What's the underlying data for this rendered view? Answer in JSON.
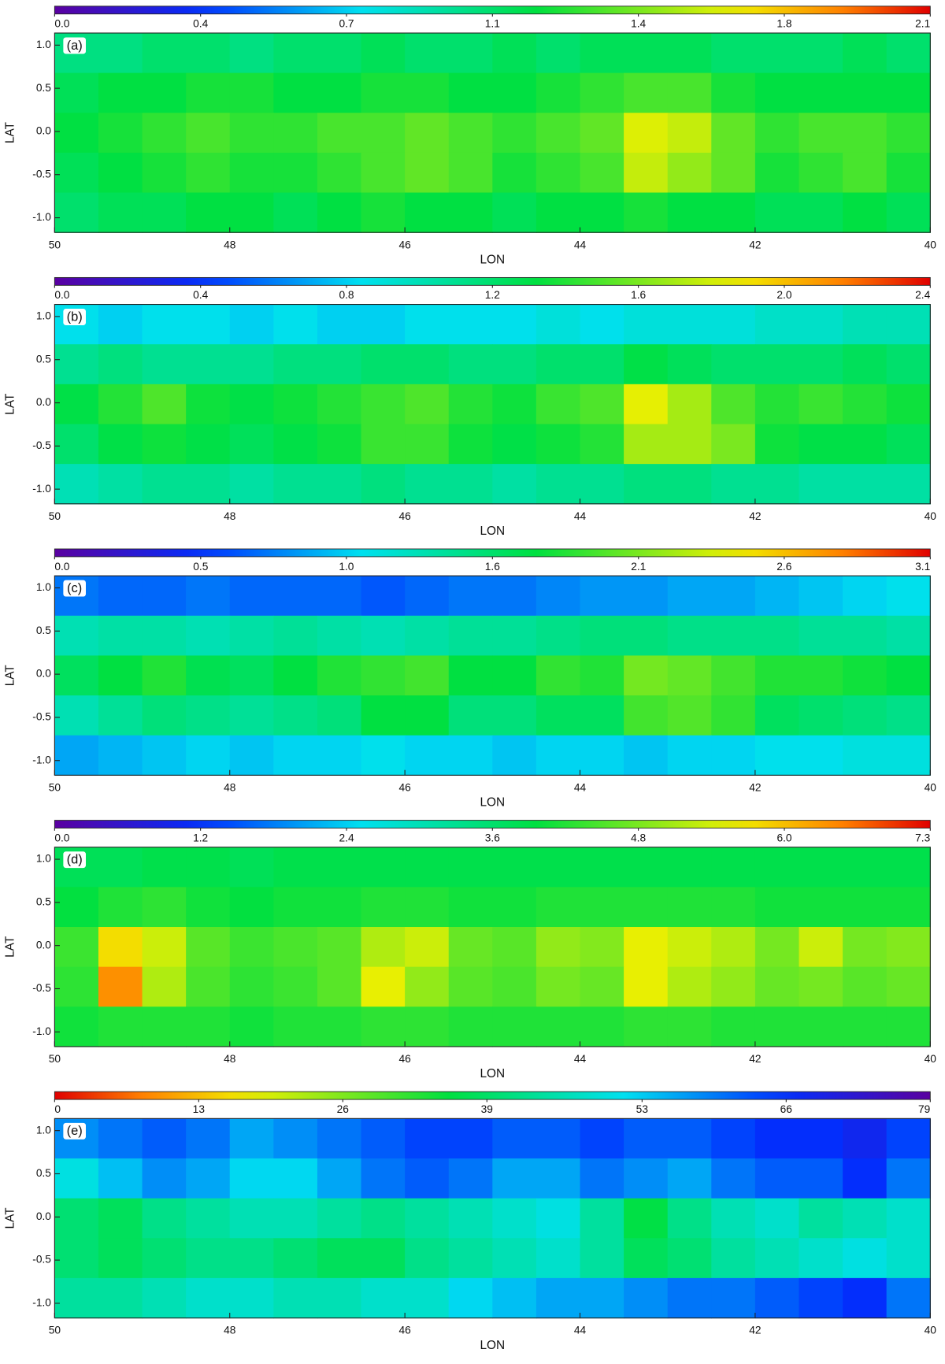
{
  "chart_data": [
    {
      "type": "heatmap",
      "label": "(a)",
      "xlabel": "LON",
      "ylabel": "LAT",
      "colormap": "rainbow",
      "clim": [
        0,
        2.1
      ],
      "cticks": [
        {
          "value": 0,
          "label": "0.0"
        },
        {
          "value": 0.35,
          "label": "0.4"
        },
        0.7,
        {
          "value": 1.05,
          "label": "1.1"
        },
        1.4,
        {
          "value": 1.75,
          "label": "1.8"
        },
        2.1
      ],
      "xlim": [
        50,
        40
      ],
      "xticks": [
        50,
        48,
        46,
        44,
        42,
        40
      ],
      "ylim": [
        -1.17,
        1.14
      ],
      "yticks": [
        {
          "value": 1,
          "label": "1.0"
        },
        0.5,
        {
          "value": 0,
          "label": "0.0"
        },
        -0.5,
        {
          "value": -1,
          "label": "-1.0"
        }
      ],
      "z": [
        [
          1.0,
          1.0,
          1.05,
          1.05,
          1.0,
          1.05,
          1.05,
          1.1,
          1.05,
          1.05,
          1.1,
          1.05,
          1.1,
          1.1,
          1.1,
          1.05,
          1.05,
          1.05,
          1.1,
          1.05
        ],
        [
          1.1,
          1.15,
          1.15,
          1.2,
          1.2,
          1.15,
          1.15,
          1.2,
          1.2,
          1.15,
          1.15,
          1.2,
          1.25,
          1.3,
          1.3,
          1.2,
          1.15,
          1.15,
          1.15,
          1.15
        ],
        [
          1.15,
          1.2,
          1.25,
          1.3,
          1.25,
          1.25,
          1.3,
          1.3,
          1.35,
          1.3,
          1.25,
          1.3,
          1.35,
          1.6,
          1.55,
          1.35,
          1.25,
          1.3,
          1.3,
          1.25
        ],
        [
          1.1,
          1.15,
          1.2,
          1.25,
          1.2,
          1.2,
          1.25,
          1.3,
          1.35,
          1.3,
          1.2,
          1.25,
          1.3,
          1.55,
          1.45,
          1.35,
          1.2,
          1.25,
          1.3,
          1.2
        ],
        [
          1.05,
          1.1,
          1.1,
          1.15,
          1.15,
          1.1,
          1.15,
          1.2,
          1.15,
          1.15,
          1.1,
          1.15,
          1.15,
          1.2,
          1.15,
          1.15,
          1.1,
          1.1,
          1.15,
          1.1
        ]
      ]
    },
    {
      "type": "heatmap",
      "label": "(b)",
      "xlabel": "LON",
      "ylabel": "LAT",
      "colormap": "rainbow",
      "clim": [
        0,
        2.4
      ],
      "cticks": [
        {
          "value": 0,
          "label": "0.0"
        },
        0.4,
        0.8,
        1.2,
        1.6,
        {
          "value": 2,
          "label": "2.0"
        },
        2.4
      ],
      "xlim": [
        50,
        40
      ],
      "xticks": [
        50,
        48,
        46,
        44,
        42,
        40
      ],
      "ylim": [
        -1.17,
        1.14
      ],
      "yticks": [
        {
          "value": 1,
          "label": "1.0"
        },
        0.5,
        {
          "value": 0,
          "label": "0.0"
        },
        -0.5,
        {
          "value": -1,
          "label": "-1.0"
        }
      ],
      "z": [
        [
          0.85,
          0.8,
          0.85,
          0.85,
          0.8,
          0.85,
          0.8,
          0.8,
          0.85,
          0.85,
          0.85,
          0.9,
          0.85,
          0.9,
          0.9,
          0.9,
          0.95,
          0.95,
          1.0,
          1.0
        ],
        [
          1.1,
          1.15,
          1.1,
          1.1,
          1.1,
          1.15,
          1.15,
          1.2,
          1.2,
          1.15,
          1.15,
          1.2,
          1.2,
          1.3,
          1.25,
          1.2,
          1.2,
          1.2,
          1.25,
          1.2
        ],
        [
          1.3,
          1.4,
          1.5,
          1.35,
          1.3,
          1.35,
          1.4,
          1.45,
          1.5,
          1.4,
          1.35,
          1.45,
          1.5,
          1.85,
          1.7,
          1.5,
          1.4,
          1.45,
          1.4,
          1.35
        ],
        [
          1.2,
          1.3,
          1.35,
          1.3,
          1.25,
          1.3,
          1.35,
          1.45,
          1.45,
          1.35,
          1.3,
          1.35,
          1.4,
          1.7,
          1.7,
          1.6,
          1.35,
          1.3,
          1.3,
          1.25
        ],
        [
          1.0,
          1.05,
          1.1,
          1.1,
          1.05,
          1.1,
          1.1,
          1.15,
          1.1,
          1.1,
          1.05,
          1.1,
          1.1,
          1.15,
          1.15,
          1.1,
          1.1,
          1.05,
          1.05,
          1.05
        ]
      ]
    },
    {
      "type": "heatmap",
      "label": "(c)",
      "xlabel": "LON",
      "ylabel": "LAT",
      "colormap": "rainbow",
      "clim": [
        0,
        3.1
      ],
      "cticks": [
        {
          "value": 0,
          "label": "0.0"
        },
        {
          "value": 0.517,
          "label": "0.5"
        },
        {
          "value": 1.033,
          "label": "1.0"
        },
        {
          "value": 1.55,
          "label": "1.6"
        },
        {
          "value": 2.067,
          "label": "2.1"
        },
        {
          "value": 2.583,
          "label": "2.6"
        },
        3.1
      ],
      "xlim": [
        50,
        40
      ],
      "xticks": [
        50,
        48,
        46,
        44,
        42,
        40
      ],
      "ylim": [
        -1.17,
        1.14
      ],
      "yticks": [
        {
          "value": 1,
          "label": "1.0"
        },
        0.5,
        {
          "value": 0,
          "label": "0.0"
        },
        -0.5,
        {
          "value": -1,
          "label": "-1.0"
        }
      ],
      "z": [
        [
          0.75,
          0.7,
          0.7,
          0.75,
          0.7,
          0.7,
          0.7,
          0.65,
          0.7,
          0.75,
          0.75,
          0.8,
          0.85,
          0.85,
          0.9,
          0.9,
          0.95,
          1.0,
          1.05,
          1.1
        ],
        [
          1.3,
          1.35,
          1.35,
          1.3,
          1.35,
          1.4,
          1.35,
          1.3,
          1.35,
          1.4,
          1.4,
          1.45,
          1.5,
          1.5,
          1.45,
          1.45,
          1.45,
          1.4,
          1.4,
          1.35
        ],
        [
          1.6,
          1.7,
          1.8,
          1.65,
          1.6,
          1.7,
          1.8,
          1.85,
          1.9,
          1.7,
          1.7,
          1.85,
          1.8,
          2.05,
          2.0,
          1.9,
          1.8,
          1.8,
          1.75,
          1.7
        ],
        [
          1.3,
          1.4,
          1.5,
          1.45,
          1.4,
          1.45,
          1.5,
          1.7,
          1.7,
          1.5,
          1.5,
          1.6,
          1.6,
          1.9,
          1.95,
          1.85,
          1.6,
          1.55,
          1.5,
          1.45
        ],
        [
          0.9,
          0.95,
          1.0,
          1.05,
          1.0,
          1.05,
          1.05,
          1.1,
          1.05,
          1.05,
          1.0,
          1.05,
          1.05,
          1.0,
          1.05,
          1.05,
          1.1,
          1.1,
          1.15,
          1.15
        ]
      ]
    },
    {
      "type": "heatmap",
      "label": "(d)",
      "xlabel": "LON",
      "ylabel": "LAT",
      "colormap": "rainbow",
      "clim": [
        0,
        7.25
      ],
      "cticks": [
        {
          "value": 0,
          "label": "0.0"
        },
        {
          "value": 1.208,
          "label": "1.2"
        },
        {
          "value": 2.417,
          "label": "2.4"
        },
        {
          "value": 3.625,
          "label": "3.6"
        },
        {
          "value": 4.833,
          "label": "4.8"
        },
        {
          "value": 6.042,
          "label": "6.0"
        },
        {
          "value": 7.25,
          "label": "7.3"
        }
      ],
      "xlim": [
        50,
        40
      ],
      "xticks": [
        50,
        48,
        46,
        44,
        42,
        40
      ],
      "ylim": [
        -1.17,
        1.14
      ],
      "yticks": [
        {
          "value": 1,
          "label": "1.0"
        },
        0.5,
        {
          "value": 0,
          "label": "0.0"
        },
        -0.5,
        {
          "value": -1,
          "label": "-1.0"
        }
      ],
      "z": [
        [
          3.8,
          3.8,
          3.9,
          3.9,
          3.8,
          3.9,
          3.9,
          3.9,
          3.9,
          3.9,
          3.9,
          3.9,
          3.9,
          3.9,
          3.9,
          3.9,
          3.9,
          3.9,
          3.9,
          3.9
        ],
        [
          4.0,
          4.2,
          4.3,
          4.1,
          4.0,
          4.1,
          4.1,
          4.2,
          4.2,
          4.1,
          4.1,
          4.2,
          4.2,
          4.2,
          4.2,
          4.2,
          4.1,
          4.1,
          4.1,
          4.1
        ],
        [
          4.4,
          5.8,
          5.4,
          4.6,
          4.4,
          4.5,
          4.6,
          5.2,
          5.4,
          4.7,
          4.6,
          5.0,
          4.9,
          5.6,
          5.4,
          5.2,
          4.8,
          5.4,
          4.8,
          4.9
        ],
        [
          4.3,
          6.4,
          5.2,
          4.5,
          4.3,
          4.4,
          4.6,
          5.6,
          5.0,
          4.6,
          4.5,
          4.8,
          4.7,
          5.6,
          5.2,
          5.0,
          4.7,
          4.8,
          4.6,
          4.7
        ],
        [
          4.1,
          4.2,
          4.2,
          4.2,
          4.1,
          4.2,
          4.2,
          4.3,
          4.3,
          4.2,
          4.2,
          4.2,
          4.2,
          4.3,
          4.3,
          4.2,
          4.2,
          4.2,
          4.2,
          4.2
        ]
      ]
    },
    {
      "type": "heatmap",
      "label": "(e)",
      "xlabel": "LON",
      "ylabel": "LAT",
      "colormap": "rainbow_r",
      "clim": [
        0,
        79
      ],
      "cticks": [
        0,
        13,
        26,
        39,
        53,
        66,
        79
      ],
      "xlim": [
        50,
        40
      ],
      "xticks": [
        50,
        48,
        46,
        44,
        42,
        40
      ],
      "ylim": [
        -1.17,
        1.14
      ],
      "yticks": [
        {
          "value": 1,
          "label": "1.0"
        },
        0.5,
        {
          "value": 0,
          "label": "0.0"
        },
        -0.5,
        {
          "value": -1,
          "label": "-1.0"
        }
      ],
      "z": [
        [
          58,
          60,
          62,
          60,
          56,
          58,
          60,
          62,
          64,
          64,
          62,
          62,
          64,
          62,
          62,
          64,
          66,
          66,
          68,
          64
        ],
        [
          50,
          54,
          58,
          56,
          52,
          52,
          56,
          60,
          62,
          60,
          56,
          56,
          60,
          58,
          56,
          60,
          62,
          62,
          66,
          60
        ],
        [
          40,
          38,
          42,
          44,
          46,
          46,
          44,
          42,
          44,
          46,
          48,
          50,
          44,
          36,
          42,
          46,
          48,
          44,
          46,
          48
        ],
        [
          40,
          38,
          40,
          42,
          42,
          40,
          38,
          38,
          42,
          44,
          46,
          48,
          44,
          38,
          40,
          44,
          46,
          48,
          50,
          48
        ],
        [
          44,
          44,
          46,
          48,
          48,
          46,
          46,
          48,
          48,
          52,
          54,
          56,
          56,
          58,
          60,
          60,
          62,
          64,
          66,
          60
        ]
      ]
    }
  ]
}
